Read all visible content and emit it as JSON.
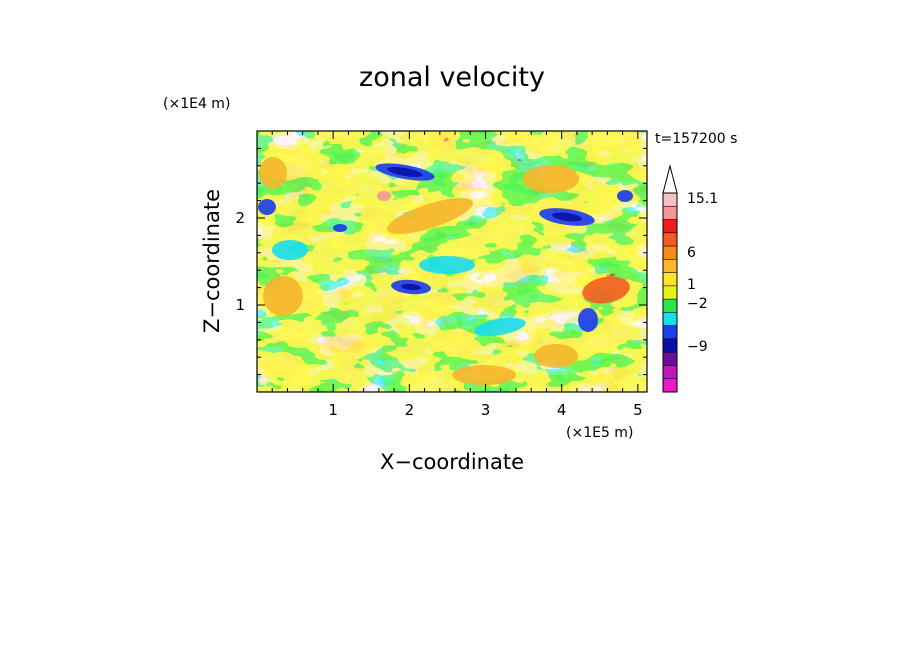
{
  "chart_data": {
    "type": "heatmap",
    "title": "zonal velocity",
    "xlabel": "X−coordinate",
    "ylabel": "Z−coordinate",
    "x_unit": "(×1E5 m)",
    "y_unit": "(×1E4 m)",
    "time_label": "t=157200 s",
    "xlim": [
      0,
      5.12
    ],
    "ylim": [
      0,
      3.0
    ],
    "x_ticks": [
      {
        "value": 1,
        "label": "1"
      },
      {
        "value": 2,
        "label": "2"
      },
      {
        "value": 3,
        "label": "3"
      },
      {
        "value": 4,
        "label": "4"
      },
      {
        "value": 5,
        "label": "5"
      }
    ],
    "y_ticks": [
      {
        "value": 1,
        "label": "1"
      },
      {
        "value": 2,
        "label": "2"
      }
    ],
    "colorbar": {
      "label_levels": [
        {
          "value": 15.1,
          "label": "15.1"
        },
        {
          "value": 6,
          "label": "6"
        },
        {
          "value": 1,
          "label": "1"
        },
        {
          "value": -2,
          "label": "−2"
        },
        {
          "value": -9,
          "label": "−9"
        }
      ],
      "bands_top_to_bottom": [
        "#f8bfc0",
        "#f49796",
        "#ee1c1c",
        "#f25d1f",
        "#f58b1a",
        "#fdb830",
        "#fde72a",
        "#e7f213",
        "#28e746",
        "#19dced",
        "#1a40f0",
        "#0a10a8",
        "#6a10a0",
        "#c018b8",
        "#f018c8"
      ],
      "extend": "max"
    },
    "grid": false,
    "field_colors": {
      "orange": "#f5b52c",
      "yellow": "#fde72a",
      "yellow_green": "#e5ef1a",
      "green": "#2ee64a",
      "cyan": "#1adbed",
      "blue": "#1a3aee",
      "navy": "#0a10a8",
      "red_orange": "#f25d1f",
      "pink": "#f49796"
    }
  }
}
